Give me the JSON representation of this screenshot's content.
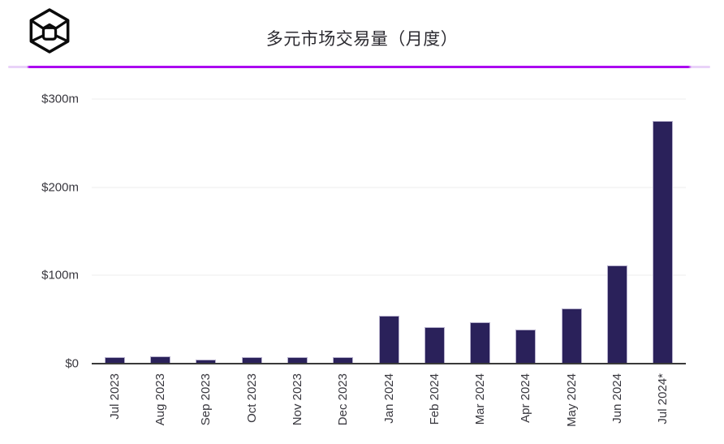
{
  "header": {
    "title": "多元市场交易量（月度）",
    "logo_icon": "wireframe-cube-logo"
  },
  "theme": {
    "bar_color": "#2a215a",
    "bar_border_color": "#b6b0cc",
    "accent_line_color": "#ab07f0",
    "accent_line_end_color": "#e9d2f8",
    "axis_color": "#3a3a3a",
    "gridline_color": "#ededed",
    "logo_color": "#0b0b0b"
  },
  "chart_data": {
    "type": "bar",
    "title": "多元市场交易量（月度）",
    "categories": [
      "Jul 2023",
      "Aug 2023",
      "Sep 2023",
      "Oct 2023",
      "Nov 2023",
      "Dec 2023",
      "Jan 2024",
      "Feb 2024",
      "Mar 2024",
      "Apr 2024",
      "May 2024",
      "Jun 2024",
      "Jul 2024*"
    ],
    "values": [
      7,
      8,
      4.5,
      7.5,
      7,
      7,
      54,
      41,
      47,
      39,
      63,
      111,
      275
    ],
    "unit": "$m",
    "xlabel": "",
    "ylabel": "",
    "ylim": [
      0,
      300
    ],
    "yticks": [
      {
        "value": 0,
        "label": "$0"
      },
      {
        "value": 100,
        "label": "$100m"
      },
      {
        "value": 200,
        "label": "$200m"
      },
      {
        "value": 300,
        "label": "$300m"
      }
    ],
    "grid": "horizontal",
    "legend": "none",
    "x_tick_rotation": 90
  }
}
